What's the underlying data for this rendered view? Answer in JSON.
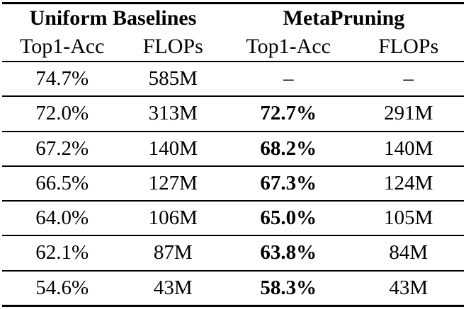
{
  "table": {
    "groups": [
      {
        "label": "Uniform Baselines"
      },
      {
        "label": "MetaPruning"
      }
    ],
    "columns": [
      "Top1-Acc",
      "FLOPs",
      "Top1-Acc",
      "FLOPs"
    ],
    "rows": [
      [
        "74.7%",
        "585M",
        "–",
        "–"
      ],
      [
        "72.0%",
        "313M",
        "72.7%",
        "291M"
      ],
      [
        "67.2%",
        "140M",
        "68.2%",
        "140M"
      ],
      [
        "66.5%",
        "127M",
        "67.3%",
        "124M"
      ],
      [
        "64.0%",
        "106M",
        "65.0%",
        "105M"
      ],
      [
        "62.1%",
        "87M",
        "63.8%",
        "84M"
      ],
      [
        "54.6%",
        "43M",
        "58.3%",
        "43M"
      ]
    ]
  },
  "chart_data": {
    "type": "table",
    "title": "Uniform Baselines vs MetaPruning",
    "column_groups": [
      "Uniform Baselines",
      "MetaPruning"
    ],
    "columns": [
      "Uniform Top1-Acc",
      "Uniform FLOPs",
      "MetaPruning Top1-Acc",
      "MetaPruning FLOPs"
    ],
    "rows": [
      [
        "74.7%",
        "585M",
        "–",
        "–"
      ],
      [
        "72.0%",
        "313M",
        "72.7%",
        "291M"
      ],
      [
        "67.2%",
        "140M",
        "68.2%",
        "140M"
      ],
      [
        "66.5%",
        "127M",
        "67.3%",
        "124M"
      ],
      [
        "64.0%",
        "106M",
        "65.0%",
        "105M"
      ],
      [
        "62.1%",
        "87M",
        "63.8%",
        "84M"
      ],
      [
        "54.6%",
        "43M",
        "58.3%",
        "43M"
      ]
    ]
  }
}
